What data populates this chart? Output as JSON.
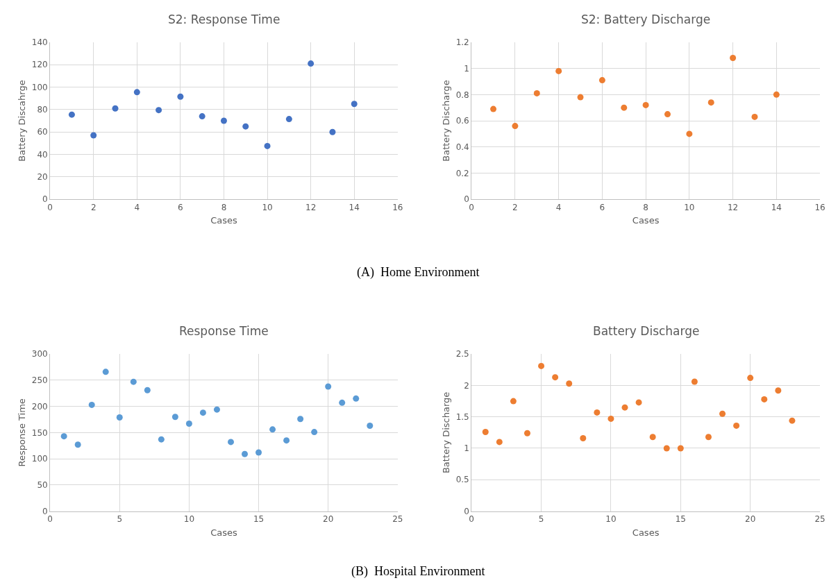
{
  "chart_data": [
    {
      "type": "scatter",
      "title": "S2: Response Time",
      "xlabel": "Cases",
      "ylabel": "Battery Discahrge",
      "marker": "circle",
      "grid": true,
      "x": [
        1,
        2,
        3,
        4,
        5,
        6,
        7,
        8,
        9,
        10,
        11,
        12,
        13,
        14
      ],
      "series": [
        {
          "color": "#4472c4",
          "values": [
            75.5,
            57,
            81,
            95.5,
            79.5,
            91.5,
            74,
            70,
            65,
            47.5,
            71.5,
            121,
            60,
            85
          ]
        }
      ],
      "xlim": [
        0,
        16
      ],
      "xticks": [
        0,
        2,
        4,
        6,
        8,
        10,
        12,
        14,
        16
      ],
      "ylim": [
        0,
        140
      ],
      "yticks": [
        0,
        20,
        40,
        60,
        80,
        100,
        120,
        140
      ],
      "annotations": [
        "(A)  Home Environment"
      ]
    },
    {
      "type": "scatter",
      "title": "S2: Battery Discharge",
      "xlabel": "Cases",
      "ylabel": "Battery Discharge",
      "marker": "circle",
      "grid": true,
      "x": [
        1,
        2,
        3,
        4,
        5,
        6,
        7,
        8,
        9,
        10,
        11,
        12,
        13,
        14
      ],
      "series": [
        {
          "color": "#ed7d31",
          "values": [
            0.69,
            0.56,
            0.81,
            0.98,
            0.78,
            0.91,
            0.7,
            0.72,
            0.65,
            0.5,
            0.74,
            1.08,
            0.63,
            0.8
          ]
        }
      ],
      "xlim": [
        0,
        16
      ],
      "xticks": [
        0,
        2,
        4,
        6,
        8,
        10,
        12,
        14,
        16
      ],
      "ylim": [
        0,
        1.2
      ],
      "yticks": [
        0,
        {
          "value": 0.2,
          "label": "0.2"
        },
        {
          "value": 0.4,
          "label": "0.4"
        },
        {
          "value": 0.6,
          "label": "0.6"
        },
        {
          "value": 0.8,
          "label": "0.8"
        },
        1,
        {
          "value": 1.2,
          "label": "1.2"
        }
      ]
    },
    {
      "type": "scatter",
      "title": "Response Time",
      "xlabel": "Cases",
      "ylabel": "Response Time",
      "marker": "circle",
      "grid": true,
      "x": [
        1,
        2,
        3,
        4,
        5,
        6,
        7,
        8,
        9,
        10,
        11,
        12,
        13,
        14,
        15,
        16,
        17,
        18,
        19,
        20,
        21,
        22,
        23
      ],
      "series": [
        {
          "color": "#5b9bd5",
          "values": [
            143,
            127,
            203,
            266,
            179,
            247,
            231,
            137,
            180,
            167,
            188,
            194,
            132,
            109,
            112,
            156,
            135,
            176,
            151,
            238,
            207,
            215,
            163
          ]
        }
      ],
      "xlim": [
        0,
        25
      ],
      "xticks": [
        0,
        5,
        10,
        15,
        20,
        25
      ],
      "ylim": [
        0,
        300
      ],
      "yticks": [
        0,
        50,
        100,
        150,
        200,
        250,
        300
      ],
      "annotations": [
        "(B)  Hospital Environment"
      ]
    },
    {
      "type": "scatter",
      "title": "Battery Discharge",
      "xlabel": "Cases",
      "ylabel": "Battery Discharge",
      "marker": "circle",
      "grid": true,
      "x": [
        1,
        2,
        3,
        4,
        5,
        6,
        7,
        8,
        9,
        10,
        11,
        12,
        13,
        14,
        15,
        16,
        17,
        18,
        19,
        20,
        21,
        22,
        23
      ],
      "series": [
        {
          "color": "#ed7d31",
          "values": [
            1.26,
            1.1,
            1.75,
            1.24,
            2.31,
            2.13,
            2.03,
            1.16,
            1.57,
            1.47,
            1.65,
            1.73,
            1.18,
            1.0,
            1.0,
            2.06,
            1.18,
            1.55,
            1.36,
            2.12,
            1.78,
            1.92,
            1.44
          ]
        }
      ],
      "xlim": [
        0,
        25
      ],
      "xticks": [
        0,
        5,
        10,
        15,
        20,
        25
      ],
      "ylim": [
        0,
        2.5
      ],
      "yticks": [
        0,
        {
          "value": 0.5,
          "label": "0.5"
        },
        1,
        {
          "value": 1.5,
          "label": "1.5"
        },
        2,
        {
          "value": 2.5,
          "label": "2.5"
        }
      ]
    }
  ]
}
